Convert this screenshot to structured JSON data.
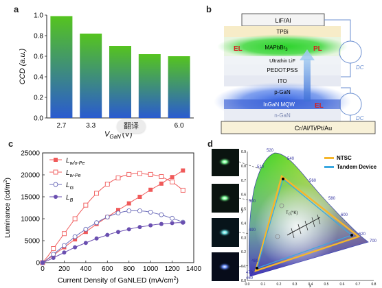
{
  "panels": {
    "a": "a",
    "b": "b",
    "c": "c",
    "d": "d"
  },
  "overlay_badge": "翻译",
  "chart_data": [
    {
      "type": "bar",
      "panel": "a",
      "categories": [
        "2.7",
        "3.3",
        "3.",
        "",
        "6.0"
      ],
      "values": [
        0.99,
        0.82,
        0.7,
        0.62,
        0.6
      ],
      "ylabel": "CCD (a.u.)",
      "xlabel": "V",
      "xlabel_sub": "GaN",
      "xlabel_suffix": "(V)",
      "ylim": [
        0.0,
        1.0
      ],
      "yticks": [
        "0.0",
        "0.2",
        "0.4",
        "0.6",
        "0.8",
        "1.0"
      ],
      "gradient": [
        "#55c41f",
        "#2a5bd0"
      ]
    },
    {
      "type": "line",
      "panel": "c",
      "xlabel": "Current Density of GaNLED (mA/cm",
      "xlabel_sup": "2",
      "xlabel_tail": ")",
      "ylabel": "Luminance (cd/m",
      "ylabel_sup": "2",
      "ylabel_tail": ")",
      "xlim": [
        0,
        1400
      ],
      "ylim": [
        0,
        25000
      ],
      "xticks": [
        "0",
        "200",
        "400",
        "600",
        "800",
        "1000",
        "1200",
        "1400"
      ],
      "yticks": [
        "0",
        "5000",
        "10000",
        "15000",
        "20000",
        "25000"
      ],
      "series": [
        {
          "name": "L",
          "sub": "w/o-Pe",
          "color": "#f05a5a",
          "marker": "filled-square",
          "x": [
            0,
            50,
            100,
            150,
            200,
            250,
            300,
            350,
            400,
            450,
            500,
            550,
            600,
            650,
            700,
            750,
            800,
            850,
            900,
            950,
            1000,
            1050,
            1100,
            1150,
            1200,
            1250,
            1300
          ],
          "y": [
            0,
            800,
            1700,
            2600,
            3500,
            4400,
            5300,
            6200,
            7000,
            7900,
            8800,
            9600,
            10400,
            11200,
            12000,
            12700,
            13500,
            14300,
            15000,
            15800,
            16600,
            17300,
            18000,
            18800,
            19500,
            20200,
            21000
          ]
        },
        {
          "name": "L",
          "sub": "w-Pe",
          "color": "#f05a5a",
          "marker": "open-square",
          "x": [
            0,
            50,
            100,
            150,
            200,
            250,
            300,
            350,
            400,
            450,
            500,
            550,
            600,
            650,
            700,
            750,
            800,
            850,
            900,
            950,
            1000,
            1050,
            1100,
            1150,
            1200,
            1250,
            1300
          ],
          "y": [
            0,
            1500,
            3200,
            4900,
            6600,
            8300,
            10000,
            11600,
            13100,
            14500,
            15800,
            16900,
            17900,
            18700,
            19300,
            19800,
            20100,
            20300,
            20300,
            20200,
            20100,
            19900,
            19600,
            19000,
            18400,
            17500,
            16500
          ]
        },
        {
          "name": "L",
          "sub": "G",
          "color": "#6a6ab8",
          "marker": "open-circle",
          "x": [
            0,
            50,
            100,
            150,
            200,
            250,
            300,
            350,
            400,
            450,
            500,
            550,
            600,
            650,
            700,
            750,
            800,
            850,
            900,
            950,
            1000,
            1050,
            1100,
            1150,
            1200,
            1250,
            1300
          ],
          "y": [
            0,
            900,
            1900,
            2900,
            3900,
            4900,
            5900,
            6800,
            7600,
            8400,
            9100,
            9800,
            10400,
            10900,
            11300,
            11600,
            11800,
            11900,
            11800,
            11700,
            11500,
            11200,
            10900,
            10500,
            10100,
            9700,
            9200
          ]
        },
        {
          "name": "L",
          "sub": "B",
          "color": "#6a4fb0",
          "marker": "filled-circle",
          "x": [
            0,
            50,
            100,
            150,
            200,
            250,
            300,
            350,
            400,
            450,
            500,
            550,
            600,
            650,
            700,
            750,
            800,
            850,
            900,
            950,
            1000,
            1050,
            1100,
            1150,
            1200,
            1250,
            1300
          ],
          "y": [
            0,
            500,
            1100,
            1700,
            2300,
            2900,
            3500,
            4000,
            4500,
            5000,
            5500,
            5900,
            6300,
            6700,
            7000,
            7300,
            7600,
            7900,
            8100,
            8300,
            8500,
            8700,
            8800,
            8900,
            9000,
            9100,
            9100
          ]
        }
      ]
    },
    {
      "type": "diagram",
      "panel": "d",
      "legend": [
        "NTSC",
        "Tandem Device"
      ],
      "legend_colors": [
        "#f5b62c",
        "#3aa8e0"
      ],
      "wavelength_labels": [
        "460",
        "470",
        "480",
        "490",
        "500",
        "510",
        "520",
        "540",
        "560",
        "580",
        "600",
        "620",
        "700"
      ],
      "axis_x_label": "x",
      "axis_y_label": "y",
      "axis_x_ticks": [
        "0.0",
        "0.1",
        "0.2",
        "0.3",
        "0.4",
        "0.5",
        "0.6",
        "0.7",
        "0.8"
      ],
      "axis_y_ticks": [
        "0.0",
        "0.1",
        "0.2",
        "0.3",
        "0.4",
        "0.5",
        "0.6",
        "0.7",
        "0.8",
        "0.9"
      ],
      "cct_label": "T",
      "cct_sub": "C",
      "cct_unit": "(°K)"
    }
  ],
  "panel_b": {
    "top_electrode": "LiF/Al",
    "bottom_electrode": "Cr/Al/Ti/Pt/Au",
    "layers": [
      "TPBi",
      "MAPbBr",
      "Ultrathin LiF",
      "PEDOT:PSS",
      "ITO",
      "p-GaN",
      "InGaN MQW",
      "n-GaN"
    ],
    "mapbbr_sub": "3",
    "el_top": "EL",
    "pl_top": "PL",
    "el_bottom": "EL",
    "dc_top": "DC",
    "dc_bottom": "DC"
  }
}
